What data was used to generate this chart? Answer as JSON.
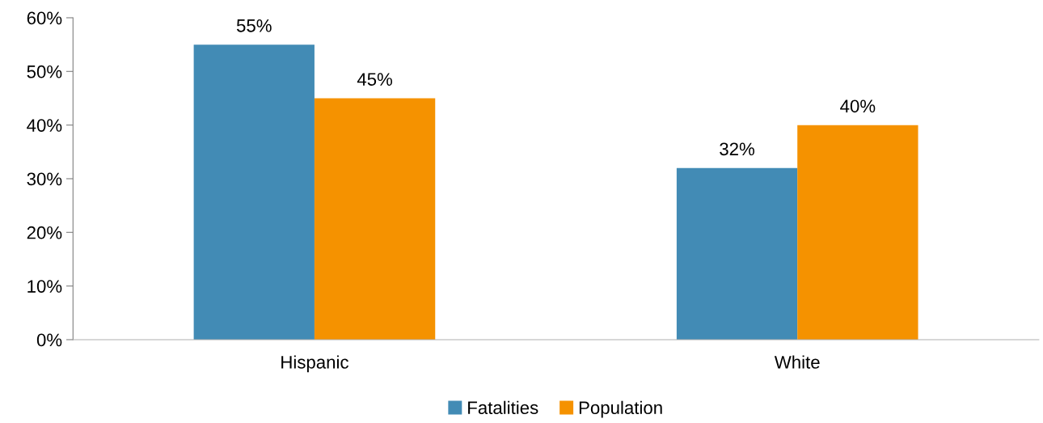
{
  "chart_data": {
    "type": "bar",
    "categories": [
      "Hispanic",
      "White"
    ],
    "series": [
      {
        "name": "Fatalities",
        "color": "#428bb5",
        "values": [
          55,
          32
        ],
        "value_labels": [
          "55%",
          "32%"
        ]
      },
      {
        "name": "Population",
        "color": "#f59200",
        "values": [
          45,
          40
        ],
        "value_labels": [
          "45%",
          "40%"
        ]
      }
    ],
    "ylim": [
      0,
      60
    ],
    "yticks": [
      {
        "value": 0,
        "label": "0%"
      },
      {
        "value": 10,
        "label": "10%"
      },
      {
        "value": 20,
        "label": "20%"
      },
      {
        "value": 30,
        "label": "30%"
      },
      {
        "value": 40,
        "label": "40%"
      },
      {
        "value": 50,
        "label": "50%"
      },
      {
        "value": 60,
        "label": "60%"
      }
    ],
    "grid": false,
    "legend": "bottom"
  }
}
